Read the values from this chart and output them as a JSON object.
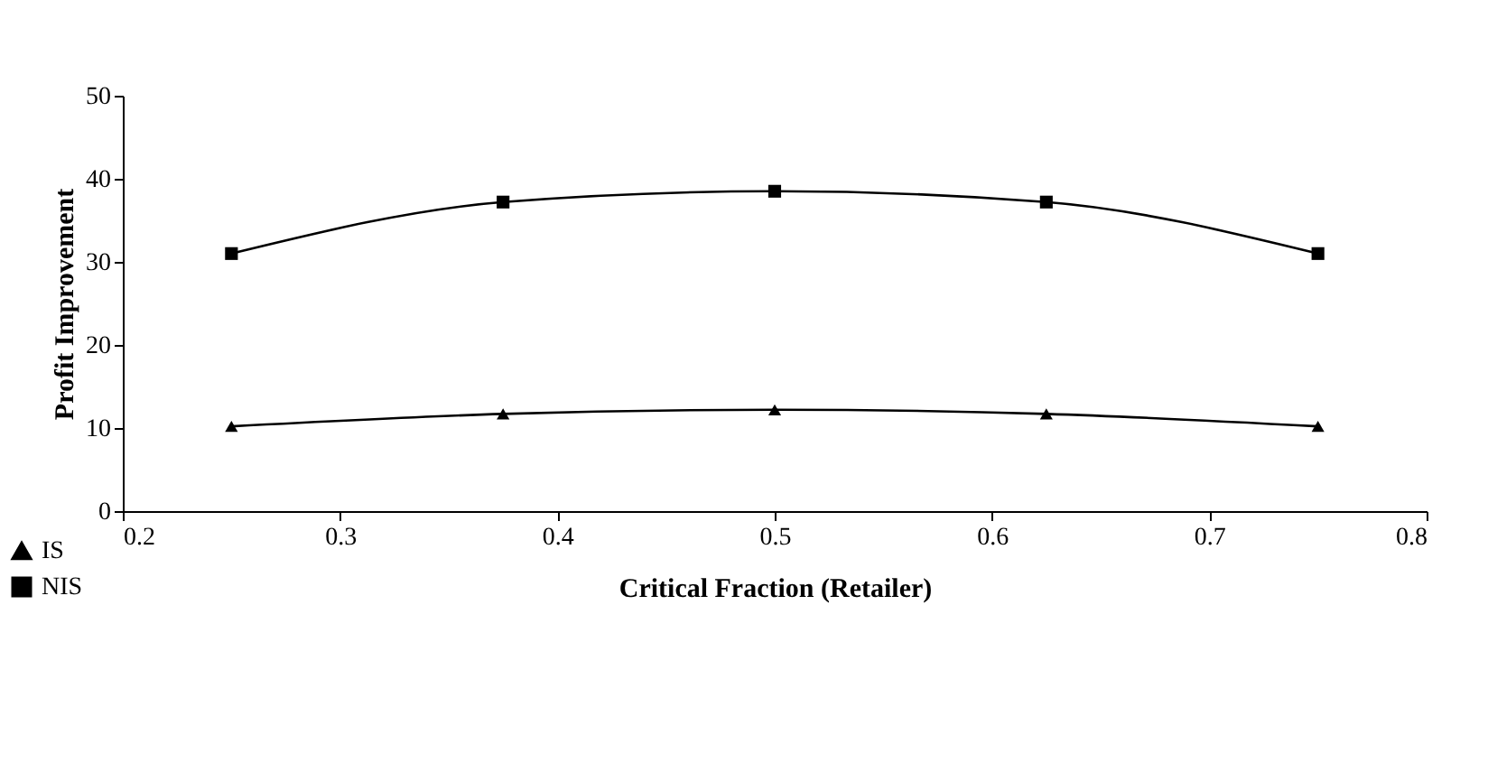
{
  "chart_data": {
    "type": "line",
    "xlabel": "Critical Fraction (Retailer)",
    "ylabel": "Profit Improvement",
    "x": [
      0.25,
      0.375,
      0.5,
      0.625,
      0.75
    ],
    "series": [
      {
        "name": "IS",
        "color": "#000000",
        "marker": "triangle",
        "values": [
          10.2,
          11.7,
          12.2,
          11.7,
          10.2
        ]
      },
      {
        "name": "NIS",
        "color": "#000000",
        "marker": "square",
        "values": [
          31,
          37.2,
          38.5,
          37.2,
          31
        ]
      }
    ],
    "xlim": [
      0.2,
      0.8
    ],
    "xticks": [
      0.2,
      0.3,
      0.4,
      0.5,
      0.6,
      0.7,
      0.8
    ],
    "ylim": [
      0,
      50
    ],
    "yticks": [
      0,
      10,
      20,
      30,
      40,
      50
    ],
    "grid": false,
    "legend": "bottom left",
    "line_style": "solid"
  }
}
